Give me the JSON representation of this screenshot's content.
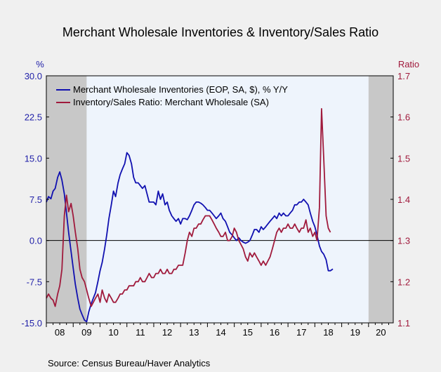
{
  "chart_data": {
    "type": "line",
    "title": "Merchant Wholesale Inventories & Inventory/Sales Ratio",
    "source": "Source:  Census Bureau/Haver Analytics",
    "left_axis": {
      "label": "%",
      "ylim": [
        -15,
        30
      ],
      "ticks": [
        -15,
        -7.5,
        0,
        7.5,
        15,
        22.5,
        30
      ],
      "tick_labels": [
        "-15.0",
        "-7.5",
        "0.0",
        "7.5",
        "15.0",
        "22.5",
        "30.0"
      ],
      "color": "#1f1fa8"
    },
    "right_axis": {
      "label": "Ratio",
      "ylim": [
        1.1,
        1.7
      ],
      "ticks": [
        1.1,
        1.2,
        1.3,
        1.4,
        1.5,
        1.6,
        1.7
      ],
      "tick_labels": [
        "1.1",
        "1.2",
        "1.3",
        "1.4",
        "1.5",
        "1.6",
        "1.7"
      ],
      "color": "#a01a3c"
    },
    "x_axis": {
      "xlim": [
        2008,
        2020.92
      ],
      "year_labels": [
        "08",
        "09",
        "10",
        "11",
        "12",
        "13",
        "14",
        "15",
        "16",
        "17",
        "18",
        "19",
        "20"
      ]
    },
    "shaded_periods": [
      [
        2008,
        2009.5
      ],
      [
        2020.0,
        2020.92
      ]
    ],
    "zero_line": true,
    "legend_position": "top-left",
    "colors": {
      "plot_bg": "#eef4fc",
      "shade": "#c8c8c8",
      "axis": "#000000"
    },
    "series": [
      {
        "name": "Merchant Wholesale Inventories (EOP, SA, $), % Y/Y",
        "axis": "left",
        "color": "#1010b0",
        "points": [
          [
            2008.0,
            7.0
          ],
          [
            2008.08,
            8.0
          ],
          [
            2008.17,
            7.6
          ],
          [
            2008.25,
            9.0
          ],
          [
            2008.33,
            9.5
          ],
          [
            2008.42,
            11.5
          ],
          [
            2008.5,
            12.5
          ],
          [
            2008.58,
            11.0
          ],
          [
            2008.67,
            8.5
          ],
          [
            2008.75,
            5.0
          ],
          [
            2008.83,
            1.5
          ],
          [
            2008.92,
            -2.0
          ],
          [
            2009.0,
            -5.0
          ],
          [
            2009.08,
            -8.0
          ],
          [
            2009.17,
            -10.5
          ],
          [
            2009.25,
            -12.5
          ],
          [
            2009.33,
            -13.5
          ],
          [
            2009.42,
            -14.5
          ],
          [
            2009.5,
            -14.8
          ],
          [
            2009.58,
            -13.0
          ],
          [
            2009.67,
            -11.5
          ],
          [
            2009.75,
            -10.5
          ],
          [
            2009.83,
            -9.5
          ],
          [
            2009.92,
            -7.5
          ],
          [
            2010.0,
            -5.5
          ],
          [
            2010.08,
            -4.0
          ],
          [
            2010.17,
            -1.5
          ],
          [
            2010.25,
            1.0
          ],
          [
            2010.33,
            4.0
          ],
          [
            2010.42,
            6.5
          ],
          [
            2010.5,
            9.0
          ],
          [
            2010.58,
            8.0
          ],
          [
            2010.67,
            10.5
          ],
          [
            2010.75,
            12.0
          ],
          [
            2010.83,
            13.0
          ],
          [
            2010.92,
            14.0
          ],
          [
            2011.0,
            16.0
          ],
          [
            2011.08,
            15.5
          ],
          [
            2011.17,
            14.0
          ],
          [
            2011.25,
            11.5
          ],
          [
            2011.33,
            10.5
          ],
          [
            2011.42,
            10.5
          ],
          [
            2011.5,
            10.0
          ],
          [
            2011.58,
            9.5
          ],
          [
            2011.67,
            10.0
          ],
          [
            2011.75,
            8.5
          ],
          [
            2011.83,
            7.0
          ],
          [
            2011.92,
            7.0
          ],
          [
            2012.0,
            7.0
          ],
          [
            2012.08,
            6.5
          ],
          [
            2012.17,
            9.0
          ],
          [
            2012.25,
            7.5
          ],
          [
            2012.33,
            8.5
          ],
          [
            2012.42,
            6.5
          ],
          [
            2012.5,
            7.0
          ],
          [
            2012.58,
            5.5
          ],
          [
            2012.67,
            4.5
          ],
          [
            2012.75,
            4.0
          ],
          [
            2012.83,
            3.5
          ],
          [
            2012.92,
            4.0
          ],
          [
            2013.0,
            3.0
          ],
          [
            2013.08,
            4.0
          ],
          [
            2013.17,
            4.0
          ],
          [
            2013.25,
            3.8
          ],
          [
            2013.33,
            4.5
          ],
          [
            2013.42,
            5.5
          ],
          [
            2013.5,
            6.5
          ],
          [
            2013.58,
            7.0
          ],
          [
            2013.67,
            7.0
          ],
          [
            2013.75,
            6.8
          ],
          [
            2013.83,
            6.5
          ],
          [
            2013.92,
            6.0
          ],
          [
            2014.0,
            5.5
          ],
          [
            2014.08,
            5.5
          ],
          [
            2014.17,
            5.0
          ],
          [
            2014.25,
            4.5
          ],
          [
            2014.33,
            4.0
          ],
          [
            2014.42,
            4.5
          ],
          [
            2014.5,
            5.0
          ],
          [
            2014.58,
            4.0
          ],
          [
            2014.67,
            3.5
          ],
          [
            2014.75,
            2.5
          ],
          [
            2014.83,
            1.5
          ],
          [
            2014.92,
            1.0
          ],
          [
            2015.0,
            0.5
          ],
          [
            2015.08,
            0.0
          ],
          [
            2015.17,
            0.5
          ],
          [
            2015.25,
            0.0
          ],
          [
            2015.33,
            -0.3
          ],
          [
            2015.42,
            -0.5
          ],
          [
            2015.5,
            -0.3
          ],
          [
            2015.58,
            0.0
          ],
          [
            2015.67,
            1.0
          ],
          [
            2015.75,
            2.0
          ],
          [
            2015.83,
            2.0
          ],
          [
            2015.92,
            1.5
          ],
          [
            2016.0,
            2.5
          ],
          [
            2016.08,
            2.0
          ],
          [
            2016.17,
            2.5
          ],
          [
            2016.25,
            3.0
          ],
          [
            2016.33,
            3.5
          ],
          [
            2016.42,
            4.0
          ],
          [
            2016.5,
            4.5
          ],
          [
            2016.58,
            4.0
          ],
          [
            2016.67,
            5.0
          ],
          [
            2016.75,
            4.5
          ],
          [
            2016.83,
            5.0
          ],
          [
            2016.92,
            4.5
          ],
          [
            2017.0,
            4.5
          ],
          [
            2017.08,
            5.0
          ],
          [
            2017.17,
            5.5
          ],
          [
            2017.25,
            6.5
          ],
          [
            2017.33,
            6.5
          ],
          [
            2017.42,
            7.0
          ],
          [
            2017.5,
            7.0
          ],
          [
            2017.58,
            7.5
          ],
          [
            2017.67,
            7.0
          ],
          [
            2017.75,
            6.5
          ],
          [
            2017.83,
            5.0
          ],
          [
            2017.92,
            3.5
          ],
          [
            2018.0,
            2.5
          ],
          [
            2018.08,
            1.0
          ],
          [
            2018.17,
            -1.0
          ],
          [
            2018.25,
            -2.0
          ],
          [
            2018.33,
            -2.5
          ],
          [
            2018.42,
            -3.5
          ],
          [
            2018.5,
            -5.5
          ],
          [
            2018.58,
            -5.5
          ],
          [
            2018.67,
            -5.2
          ]
        ]
      },
      {
        "name": "Inventory/Sales Ratio: Merchant Wholesale (SA)",
        "axis": "right",
        "color": "#a01a3c",
        "points": [
          [
            2008.0,
            1.16
          ],
          [
            2008.08,
            1.17
          ],
          [
            2008.17,
            1.16
          ],
          [
            2008.25,
            1.155
          ],
          [
            2008.33,
            1.14
          ],
          [
            2008.42,
            1.17
          ],
          [
            2008.5,
            1.19
          ],
          [
            2008.58,
            1.23
          ],
          [
            2008.67,
            1.36
          ],
          [
            2008.75,
            1.41
          ],
          [
            2008.83,
            1.37
          ],
          [
            2008.92,
            1.39
          ],
          [
            2009.0,
            1.36
          ],
          [
            2009.08,
            1.32
          ],
          [
            2009.17,
            1.28
          ],
          [
            2009.25,
            1.23
          ],
          [
            2009.33,
            1.21
          ],
          [
            2009.42,
            1.2
          ],
          [
            2009.5,
            1.18
          ],
          [
            2009.58,
            1.16
          ],
          [
            2009.67,
            1.14
          ],
          [
            2009.75,
            1.15
          ],
          [
            2009.83,
            1.16
          ],
          [
            2009.92,
            1.17
          ],
          [
            2010.0,
            1.15
          ],
          [
            2010.08,
            1.18
          ],
          [
            2010.17,
            1.16
          ],
          [
            2010.25,
            1.15
          ],
          [
            2010.33,
            1.17
          ],
          [
            2010.42,
            1.16
          ],
          [
            2010.5,
            1.15
          ],
          [
            2010.58,
            1.15
          ],
          [
            2010.67,
            1.16
          ],
          [
            2010.75,
            1.17
          ],
          [
            2010.83,
            1.17
          ],
          [
            2010.92,
            1.18
          ],
          [
            2011.0,
            1.18
          ],
          [
            2011.08,
            1.19
          ],
          [
            2011.17,
            1.19
          ],
          [
            2011.25,
            1.19
          ],
          [
            2011.33,
            1.2
          ],
          [
            2011.42,
            1.2
          ],
          [
            2011.5,
            1.21
          ],
          [
            2011.58,
            1.2
          ],
          [
            2011.67,
            1.2
          ],
          [
            2011.75,
            1.21
          ],
          [
            2011.83,
            1.22
          ],
          [
            2011.92,
            1.21
          ],
          [
            2012.0,
            1.21
          ],
          [
            2012.08,
            1.22
          ],
          [
            2012.17,
            1.22
          ],
          [
            2012.25,
            1.23
          ],
          [
            2012.33,
            1.22
          ],
          [
            2012.42,
            1.22
          ],
          [
            2012.5,
            1.23
          ],
          [
            2012.58,
            1.22
          ],
          [
            2012.67,
            1.22
          ],
          [
            2012.75,
            1.23
          ],
          [
            2012.83,
            1.23
          ],
          [
            2012.92,
            1.24
          ],
          [
            2013.0,
            1.24
          ],
          [
            2013.08,
            1.24
          ],
          [
            2013.17,
            1.27
          ],
          [
            2013.25,
            1.3
          ],
          [
            2013.33,
            1.32
          ],
          [
            2013.42,
            1.31
          ],
          [
            2013.5,
            1.33
          ],
          [
            2013.58,
            1.33
          ],
          [
            2013.67,
            1.34
          ],
          [
            2013.75,
            1.34
          ],
          [
            2013.83,
            1.35
          ],
          [
            2013.92,
            1.36
          ],
          [
            2014.0,
            1.36
          ],
          [
            2014.08,
            1.36
          ],
          [
            2014.17,
            1.35
          ],
          [
            2014.25,
            1.34
          ],
          [
            2014.33,
            1.33
          ],
          [
            2014.42,
            1.32
          ],
          [
            2014.5,
            1.31
          ],
          [
            2014.58,
            1.31
          ],
          [
            2014.67,
            1.32
          ],
          [
            2014.75,
            1.3
          ],
          [
            2014.83,
            1.3
          ],
          [
            2014.92,
            1.31
          ],
          [
            2015.0,
            1.33
          ],
          [
            2015.08,
            1.32
          ],
          [
            2015.17,
            1.3
          ],
          [
            2015.25,
            1.29
          ],
          [
            2015.33,
            1.28
          ],
          [
            2015.42,
            1.26
          ],
          [
            2015.5,
            1.25
          ],
          [
            2015.58,
            1.27
          ],
          [
            2015.67,
            1.26
          ],
          [
            2015.75,
            1.27
          ],
          [
            2015.83,
            1.26
          ],
          [
            2015.92,
            1.25
          ],
          [
            2016.0,
            1.24
          ],
          [
            2016.08,
            1.25
          ],
          [
            2016.17,
            1.24
          ],
          [
            2016.25,
            1.25
          ],
          [
            2016.33,
            1.26
          ],
          [
            2016.42,
            1.28
          ],
          [
            2016.5,
            1.3
          ],
          [
            2016.58,
            1.32
          ],
          [
            2016.67,
            1.33
          ],
          [
            2016.75,
            1.32
          ],
          [
            2016.83,
            1.33
          ],
          [
            2016.92,
            1.33
          ],
          [
            2017.0,
            1.34
          ],
          [
            2017.08,
            1.33
          ],
          [
            2017.17,
            1.33
          ],
          [
            2017.25,
            1.34
          ],
          [
            2017.33,
            1.33
          ],
          [
            2017.42,
            1.32
          ],
          [
            2017.5,
            1.33
          ],
          [
            2017.58,
            1.33
          ],
          [
            2017.67,
            1.35
          ],
          [
            2017.75,
            1.32
          ],
          [
            2017.83,
            1.33
          ],
          [
            2017.92,
            1.31
          ],
          [
            2018.0,
            1.32
          ],
          [
            2018.08,
            1.3
          ],
          [
            2018.17,
            1.38
          ],
          [
            2018.25,
            1.62
          ],
          [
            2018.33,
            1.5
          ],
          [
            2018.42,
            1.36
          ],
          [
            2018.5,
            1.33
          ],
          [
            2018.58,
            1.32
          ]
        ]
      }
    ]
  }
}
